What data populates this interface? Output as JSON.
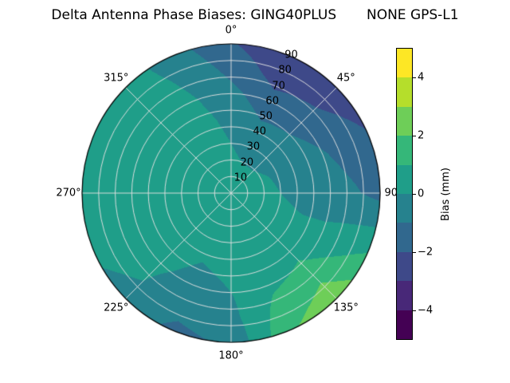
{
  "chart_data": {
    "type": "heatmap",
    "subtype": "polar-filled-contour",
    "projection": "polar",
    "title": "Delta Antenna Phase Biases: GING40PLUS       NONE GPS-L1",
    "polar": {
      "radial_max": 90,
      "radial_label_angle": 22.5,
      "grid_color": "#e0e0e0",
      "azimuth_labels": [
        {
          "angle": 0,
          "label": "0°"
        },
        {
          "angle": 45,
          "label": "45°"
        },
        {
          "angle": 90,
          "label": "90°"
        },
        {
          "angle": 135,
          "label": "135°"
        },
        {
          "angle": 180,
          "label": "180°"
        },
        {
          "angle": 225,
          "label": "225°"
        },
        {
          "angle": 270,
          "label": "270°"
        },
        {
          "angle": 315,
          "label": "315°"
        }
      ],
      "radial_ticks": [
        {
          "value": 10,
          "label": "10"
        },
        {
          "value": 20,
          "label": "20"
        },
        {
          "value": 30,
          "label": "30"
        },
        {
          "value": 40,
          "label": "40"
        },
        {
          "value": 50,
          "label": "50"
        },
        {
          "value": 60,
          "label": "60"
        },
        {
          "value": 70,
          "label": "70"
        },
        {
          "value": 80,
          "label": "80"
        },
        {
          "value": 90,
          "label": "90"
        }
      ]
    },
    "colorbar": {
      "label": "Bias (mm)",
      "min": -5,
      "max": 5,
      "levels": [
        -5,
        -4,
        -3,
        -2,
        -1,
        0,
        1,
        2,
        3,
        4,
        5
      ],
      "band_colors": [
        "#440154",
        "#482878",
        "#3e4989",
        "#31688e",
        "#26828e",
        "#1f9e89",
        "#35b779",
        "#6ece58",
        "#b5de2b",
        "#fde725"
      ],
      "ticks": [
        {
          "value": 4,
          "label": "4"
        },
        {
          "value": 2,
          "label": "2"
        },
        {
          "value": 0,
          "label": "0"
        },
        {
          "value": -2,
          "label": "−2"
        },
        {
          "value": -4,
          "label": "−4"
        }
      ]
    },
    "grid": {
      "azimuth_deg": [
        0,
        22.5,
        45,
        67.5,
        90,
        112.5,
        135,
        157.5,
        180,
        202.5,
        225,
        247.5,
        270,
        292.5,
        315,
        337.5,
        360
      ],
      "zenith_deg": [
        0,
        15,
        30,
        45,
        60,
        75,
        90
      ],
      "values_mm": [
        [
          0.3,
          0.2,
          0.0,
          -0.3,
          -0.7,
          -1.3,
          -1.9
        ],
        [
          0.3,
          0.1,
          -0.3,
          -0.9,
          -1.6,
          -2.4,
          -2.9
        ],
        [
          0.3,
          0.1,
          -0.3,
          -0.8,
          -1.4,
          -2.1,
          -2.7
        ],
        [
          0.3,
          0.2,
          -0.1,
          -0.5,
          -0.9,
          -1.4,
          -1.9
        ],
        [
          0.3,
          0.2,
          0.0,
          -0.3,
          -0.6,
          -0.9,
          -1.3
        ],
        [
          0.3,
          0.3,
          0.2,
          0.1,
          0.2,
          0.5,
          0.9
        ],
        [
          0.3,
          0.3,
          0.3,
          0.5,
          1.1,
          1.9,
          2.8
        ],
        [
          0.3,
          0.3,
          0.3,
          0.4,
          0.8,
          1.3,
          1.8
        ],
        [
          0.3,
          0.3,
          0.2,
          0.1,
          0.0,
          -0.3,
          -0.8
        ],
        [
          0.3,
          0.2,
          0.1,
          0.0,
          -0.2,
          -0.6,
          -1.3
        ],
        [
          0.3,
          0.3,
          0.2,
          0.2,
          0.1,
          0.0,
          -0.2
        ],
        [
          0.4,
          0.4,
          0.4,
          0.3,
          0.3,
          0.2,
          0.1
        ],
        [
          0.4,
          0.5,
          0.5,
          0.5,
          0.4,
          0.4,
          0.3
        ],
        [
          0.4,
          0.5,
          0.6,
          0.7,
          0.7,
          0.6,
          0.5
        ],
        [
          0.4,
          0.5,
          0.7,
          0.8,
          0.8,
          0.7,
          0.6
        ],
        [
          0.3,
          0.4,
          0.4,
          0.3,
          0.1,
          -0.2,
          -0.6
        ],
        [
          0.3,
          0.2,
          0.0,
          -0.3,
          -0.7,
          -1.3,
          -1.9
        ]
      ]
    }
  }
}
